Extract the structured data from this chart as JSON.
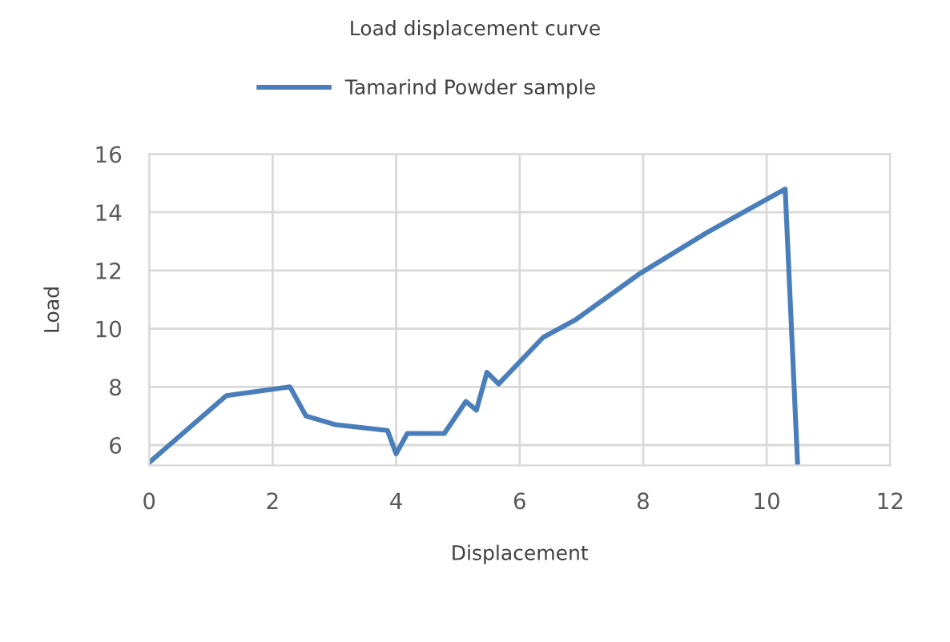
{
  "chart_data": {
    "type": "line",
    "title": "Load displacement curve",
    "xlabel": "Displacement",
    "ylabel": "Load",
    "series": [
      {
        "name": "Tamarind Powder sample",
        "color": "#4a7ebb",
        "x": [
          0,
          1.25,
          2.28,
          2.54,
          3.02,
          3.86,
          4.0,
          4.18,
          4.78,
          5.13,
          5.3,
          5.47,
          5.66,
          6.38,
          6.9,
          7.95,
          9.03,
          10.3,
          10.5
        ],
        "values": [
          5.4,
          7.7,
          8.0,
          7.0,
          6.7,
          6.5,
          5.7,
          6.4,
          6.4,
          7.5,
          7.2,
          8.5,
          8.1,
          9.7,
          10.3,
          11.9,
          13.3,
          14.8,
          5.4
        ]
      }
    ],
    "xlim": [
      0,
      12
    ],
    "xticks": [
      0,
      2,
      4,
      6,
      8,
      10,
      12
    ],
    "ylim": [
      5.3,
      16
    ],
    "yticks": [
      6,
      8,
      10,
      12,
      14,
      16
    ],
    "grid": true,
    "legend": "top",
    "marker": "none",
    "line_style": "solid"
  }
}
